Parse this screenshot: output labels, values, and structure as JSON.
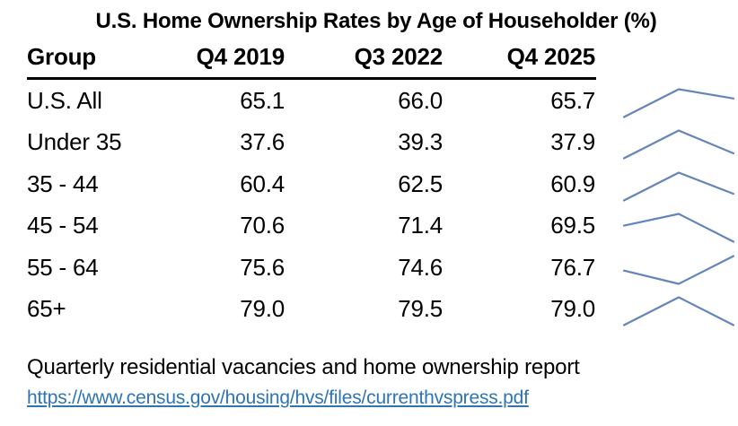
{
  "title": "U.S. Home Ownership Rates by Age of Householder (%)",
  "table": {
    "columns": [
      "Group",
      "Q4 2019",
      "Q3 2022",
      "Q4 2025"
    ],
    "rows": [
      {
        "group": "U.S. All",
        "values": [
          "65.1",
          "66.0",
          "65.7"
        ]
      },
      {
        "group": "Under 35",
        "values": [
          "37.6",
          "39.3",
          "37.9"
        ]
      },
      {
        "group": "35 - 44",
        "values": [
          "60.4",
          "62.5",
          "60.9"
        ]
      },
      {
        "group": "45 - 54",
        "values": [
          "70.6",
          "71.4",
          "69.5"
        ]
      },
      {
        "group": "55 - 64",
        "values": [
          "75.6",
          "74.6",
          "76.7"
        ]
      },
      {
        "group": "65+",
        "values": [
          "79.0",
          "79.5",
          "79.0"
        ]
      }
    ]
  },
  "sparklines": {
    "color": "#6385b9",
    "description": "3-point trend line per row, normalized to row min/max"
  },
  "footer": {
    "source_text": "Quarterly residential vacancies and home ownership report",
    "link_text": "https://www.census.gov/housing/hvs/files/currenthvspress.pdf"
  },
  "chart_data": {
    "type": "table",
    "title": "U.S. Home Ownership Rates by Age of Householder (%)",
    "categories": [
      "Q4 2019",
      "Q3 2022",
      "Q4 2025"
    ],
    "series": [
      {
        "name": "U.S. All",
        "values": [
          65.1,
          66.0,
          65.7
        ]
      },
      {
        "name": "Under 35",
        "values": [
          37.6,
          39.3,
          37.9
        ]
      },
      {
        "name": "35 - 44",
        "values": [
          60.4,
          62.5,
          60.9
        ]
      },
      {
        "name": "45 - 54",
        "values": [
          70.6,
          71.4,
          69.5
        ]
      },
      {
        "name": "55 - 64",
        "values": [
          75.6,
          74.6,
          76.7
        ]
      },
      {
        "name": "65+",
        "values": [
          79.0,
          79.5,
          79.0
        ]
      }
    ],
    "sparklines": "each row rendered as a mini line chart at row right, min-max normalized per row"
  }
}
